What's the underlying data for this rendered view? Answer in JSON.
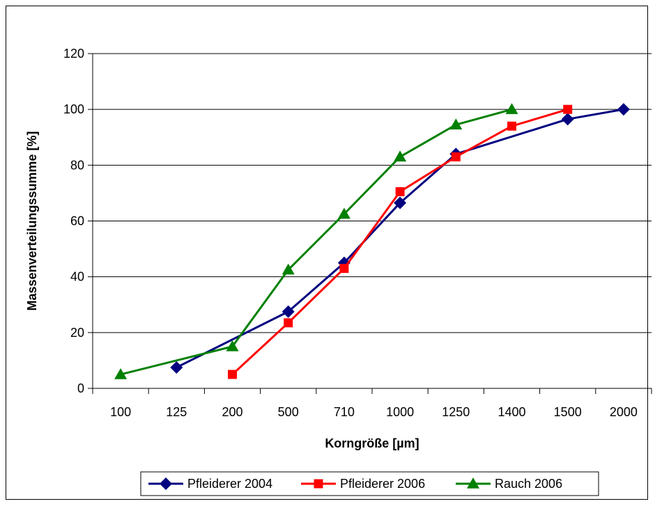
{
  "chart_data": {
    "type": "line",
    "categories": [
      "100",
      "125",
      "200",
      "500",
      "710",
      "1000",
      "1250",
      "1400",
      "1500",
      "2000"
    ],
    "xlabel": "Korngröße [µm]",
    "ylabel": "Massenverteilungssumme [%]",
    "ylim": [
      0,
      120
    ],
    "yticks": [
      "0",
      "20",
      "40",
      "60",
      "80",
      "100",
      "120"
    ],
    "grid": "horizontal",
    "legend_position": "bottom",
    "series": [
      {
        "name": "Pfleiderer 2004",
        "color": "#000080",
        "marker": "diamond",
        "x": [
          "125",
          "500",
          "710",
          "1000",
          "1250",
          "1500",
          "2000"
        ],
        "values": [
          7.5,
          27.5,
          45,
          66.5,
          84,
          96.5,
          100
        ]
      },
      {
        "name": "Pfleiderer 2006",
        "color": "#ff0000",
        "marker": "square",
        "x": [
          "200",
          "500",
          "710",
          "1000",
          "1250",
          "1400",
          "1500"
        ],
        "values": [
          5,
          23.5,
          43,
          70.5,
          83,
          94,
          100
        ]
      },
      {
        "name": "Rauch 2006",
        "color": "#008000",
        "marker": "triangle",
        "x": [
          "100",
          "200",
          "500",
          "710",
          "1000",
          "1250",
          "1400"
        ],
        "values": [
          5,
          15,
          42.5,
          62.5,
          83,
          94.5,
          100
        ]
      }
    ]
  }
}
